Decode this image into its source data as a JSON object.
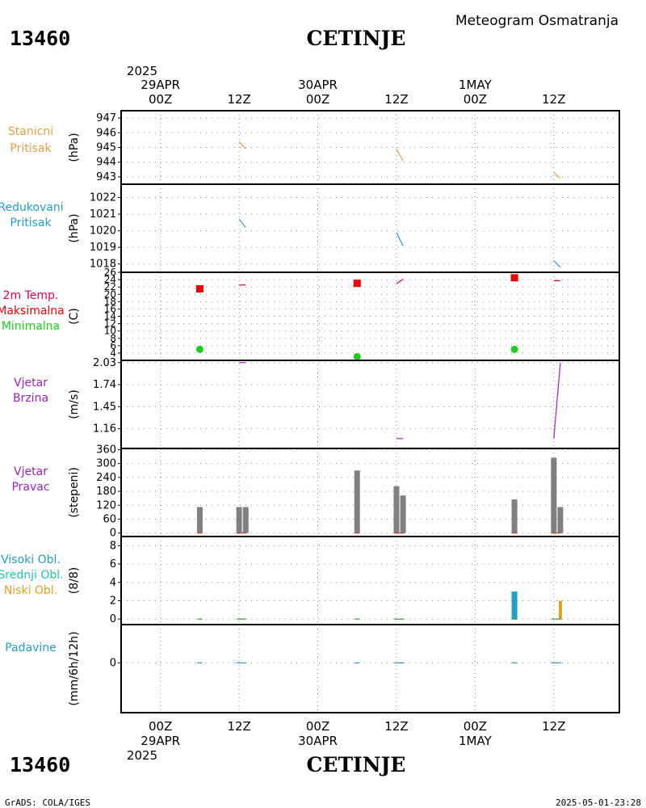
{
  "header": {
    "station_id": "13460",
    "station_name": "CETINJE",
    "product": "Meteogram Osmatranja"
  },
  "footer": {
    "station_id": "13460",
    "station_name": "CETINJE",
    "credit": "GrADS: COLA/IGES",
    "timestamp": "2025-05-01-23:28"
  },
  "time_axis": {
    "top_year": "2025",
    "bottom_year": "2025",
    "ticks": [
      {
        "h": 0,
        "hour": "00Z",
        "date": "29APR"
      },
      {
        "h": 12,
        "hour": "12Z",
        "date": ""
      },
      {
        "h": 24,
        "hour": "00Z",
        "date": "30APR"
      },
      {
        "h": 36,
        "hour": "12Z",
        "date": ""
      },
      {
        "h": 48,
        "hour": "00Z",
        "date": "1MAY"
      },
      {
        "h": 60,
        "hour": "12Z",
        "date": ""
      }
    ]
  },
  "colors": {
    "station_pressure": "#e0a040",
    "reduced_pressure": "#1ea0c8",
    "temp_label": "#e0005a",
    "temp_max": "#f00000",
    "temp_min": "#18d018",
    "wind": "#a020c0",
    "wind_dir_bar": "#808080",
    "cloud_high": "#1ea0c8",
    "cloud_mid": "#1ec8a0",
    "cloud_low": "#e0a020",
    "precip": "#1ea0c8",
    "precip_label": "#1ea0c8"
  },
  "chart_data": [
    {
      "type": "line",
      "title": "Stanicni Pritisak",
      "label_lines": [
        "Stanicni",
        "Pritisak"
      ],
      "unit": "(hPa)",
      "ylim": [
        942.5,
        947.5
      ],
      "yticks": [
        "943",
        "944",
        "945",
        "946",
        "947"
      ],
      "ytick_values": [
        943,
        944,
        945,
        946,
        947
      ],
      "segments": [
        [
          [
            12,
            945.4
          ],
          [
            13,
            944.9
          ]
        ],
        [
          [
            36,
            944.9
          ],
          [
            37,
            944.1
          ]
        ],
        [
          [
            60,
            943.3
          ],
          [
            61,
            942.9
          ]
        ]
      ]
    },
    {
      "type": "line",
      "title": "Redukovani Pritisak",
      "label_lines": [
        "Redukovani",
        "Pritisak"
      ],
      "unit": "(hPa)",
      "ylim": [
        1017.5,
        1022.8
      ],
      "yticks": [
        "1018",
        "1019",
        "1020",
        "1021",
        "1022"
      ],
      "ytick_values": [
        1018,
        1019,
        1020,
        1021,
        1022
      ],
      "segments": [
        [
          [
            12,
            1020.7
          ],
          [
            13,
            1020.2
          ]
        ],
        [
          [
            36,
            1019.9
          ],
          [
            37,
            1019.1
          ]
        ],
        [
          [
            60,
            1018.2
          ],
          [
            61,
            1017.8
          ]
        ]
      ]
    },
    {
      "type": "scatter",
      "title": "2m Temp. Maksimalna Minimalna",
      "label_lines": [
        "2m Temp.",
        "Maksimalna",
        "Minimalna"
      ],
      "unit": "(C)",
      "ylim": [
        2,
        26
      ],
      "yticks": [
        "4",
        "6",
        "8",
        "10",
        "12",
        "14",
        "16",
        "18",
        "20",
        "22",
        "24",
        "26"
      ],
      "ytick_values": [
        4,
        6,
        8,
        10,
        12,
        14,
        16,
        18,
        20,
        22,
        24,
        26
      ],
      "max_points": [
        {
          "x": 6,
          "y": 21.5
        },
        {
          "x": 30,
          "y": 23.0
        },
        {
          "x": 54,
          "y": 24.5
        }
      ],
      "min_points": [
        {
          "x": 6,
          "y": 5.0
        },
        {
          "x": 30,
          "y": 3.0
        },
        {
          "x": 54,
          "y": 5.0
        }
      ],
      "segments": [
        [
          [
            12,
            22.5
          ],
          [
            13,
            22.6
          ]
        ],
        [
          [
            36,
            22.9
          ],
          [
            37,
            24.1
          ]
        ],
        [
          [
            60,
            23.7
          ],
          [
            61,
            23.7
          ]
        ]
      ]
    },
    {
      "type": "line",
      "title": "Vjetar Brzina",
      "label_lines": [
        "Vjetar",
        "Brzina"
      ],
      "unit": "(m/s)",
      "ylim": [
        0.9,
        2.06
      ],
      "yticks": [
        "1.16",
        "1.45",
        "1.74",
        "2.03"
      ],
      "ytick_values": [
        1.16,
        1.45,
        1.74,
        2.03
      ],
      "segments": [
        [
          [
            12,
            2.03
          ],
          [
            13,
            2.03
          ]
        ],
        [
          [
            36,
            1.03
          ],
          [
            37,
            1.03
          ]
        ],
        [
          [
            60,
            1.03
          ],
          [
            61,
            2.03
          ]
        ]
      ]
    },
    {
      "type": "bar",
      "title": "Vjetar Pravac",
      "label_lines": [
        "Vjetar",
        "Pravac"
      ],
      "unit": "(stepeni)",
      "ylim": [
        -15,
        365
      ],
      "yticks": [
        "0",
        "60",
        "120",
        "180",
        "240",
        "300",
        "360"
      ],
      "ytick_values": [
        0,
        60,
        120,
        180,
        240,
        300,
        360
      ],
      "bars": [
        {
          "x": 6,
          "value": 112
        },
        {
          "x": 12,
          "value": 112
        },
        {
          "x": 13,
          "value": 112
        },
        {
          "x": 30,
          "value": 270
        },
        {
          "x": 36,
          "value": 202
        },
        {
          "x": 37,
          "value": 162
        },
        {
          "x": 54,
          "value": 145
        },
        {
          "x": 60,
          "value": 325
        },
        {
          "x": 61,
          "value": 112
        }
      ]
    },
    {
      "type": "bar",
      "title": "Visoki Obl. Srednji Obl. Niski Obl.",
      "label_lines": [
        "Visoki Obl.",
        "Srednji Obl.",
        "Niski Obl."
      ],
      "unit": "(8/8)",
      "ylim": [
        -0.6,
        9
      ],
      "yticks": [
        "0",
        "2",
        "4",
        "6",
        "8"
      ],
      "ytick_values": [
        0,
        2,
        4,
        6,
        8
      ],
      "bars": [
        {
          "x": 54,
          "value": 3,
          "layer": "high"
        },
        {
          "x": 61,
          "value": 2,
          "layer": "low"
        }
      ]
    },
    {
      "type": "line",
      "title": "Padavine",
      "label_lines": [
        "Padavine"
      ],
      "unit": "(mm/6h/12h)",
      "ylim": [
        -6.5,
        5
      ],
      "yticks": [
        "0"
      ],
      "ytick_values": [
        0
      ],
      "segments": []
    }
  ]
}
